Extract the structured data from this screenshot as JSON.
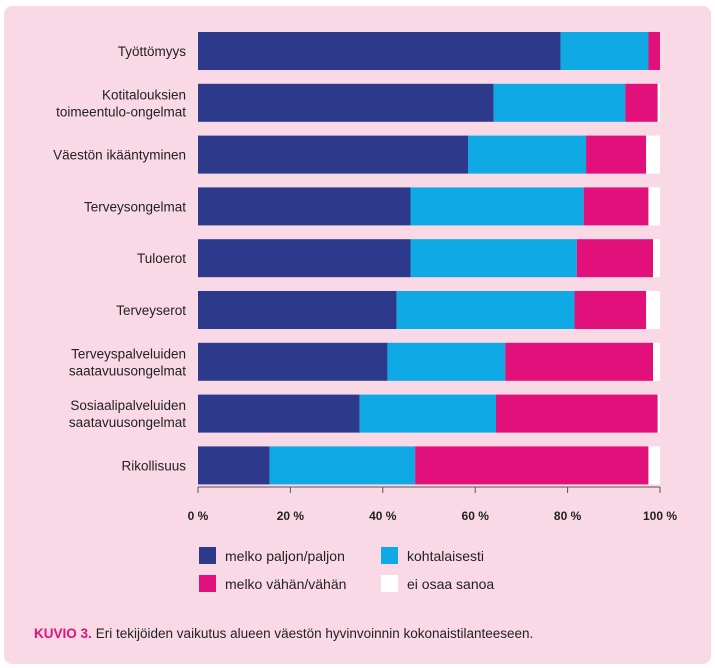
{
  "chart_data": {
    "type": "bar",
    "orientation": "horizontal",
    "stacked": true,
    "categories": [
      [
        "Työttömyys"
      ],
      [
        "Kotitalouksien",
        "toimeentulo-ongelmat"
      ],
      [
        "Väestön ikääntyminen"
      ],
      [
        "Terveysongelmat"
      ],
      [
        "Tuloerot"
      ],
      [
        "Terveyserot"
      ],
      [
        "Terveyspalveluiden",
        "saatavuusongelmat"
      ],
      [
        "Sosiaalipalveluiden",
        "saatavuusongelmat"
      ],
      [
        "Rikollisuus"
      ]
    ],
    "series": [
      {
        "name": "melko paljon/paljon",
        "color": "#2d3a8c",
        "values": [
          78.5,
          64,
          58.5,
          46,
          46,
          43,
          41,
          35,
          15.5
        ]
      },
      {
        "name": "kohtalaisesti",
        "color": "#0fa9e6",
        "values": [
          19,
          28.5,
          25.5,
          37.5,
          36,
          38.5,
          25.5,
          29.5,
          31.5
        ]
      },
      {
        "name": "melko vähän/vähän",
        "color": "#e2107a",
        "values": [
          2.5,
          7,
          13,
          14,
          16.5,
          15.5,
          32,
          35,
          50.5
        ]
      },
      {
        "name": "ei osaa sanoa",
        "color": "#ffffff",
        "values": [
          0,
          0.5,
          3,
          2.5,
          1.5,
          3,
          1.5,
          0.5,
          2.5
        ]
      }
    ],
    "xlim": [
      0,
      100
    ],
    "xticks": [
      "0 %",
      "20 %",
      "40 %",
      "60 %",
      "80 %",
      "100 %"
    ],
    "grid": false,
    "legend_position": "bottom"
  },
  "caption": {
    "prefix": "KUVIO 3.",
    "text": "Eri tekijöiden vaikutus alueen väestön hyvinvoinnin kokonaistilanteeseen."
  }
}
